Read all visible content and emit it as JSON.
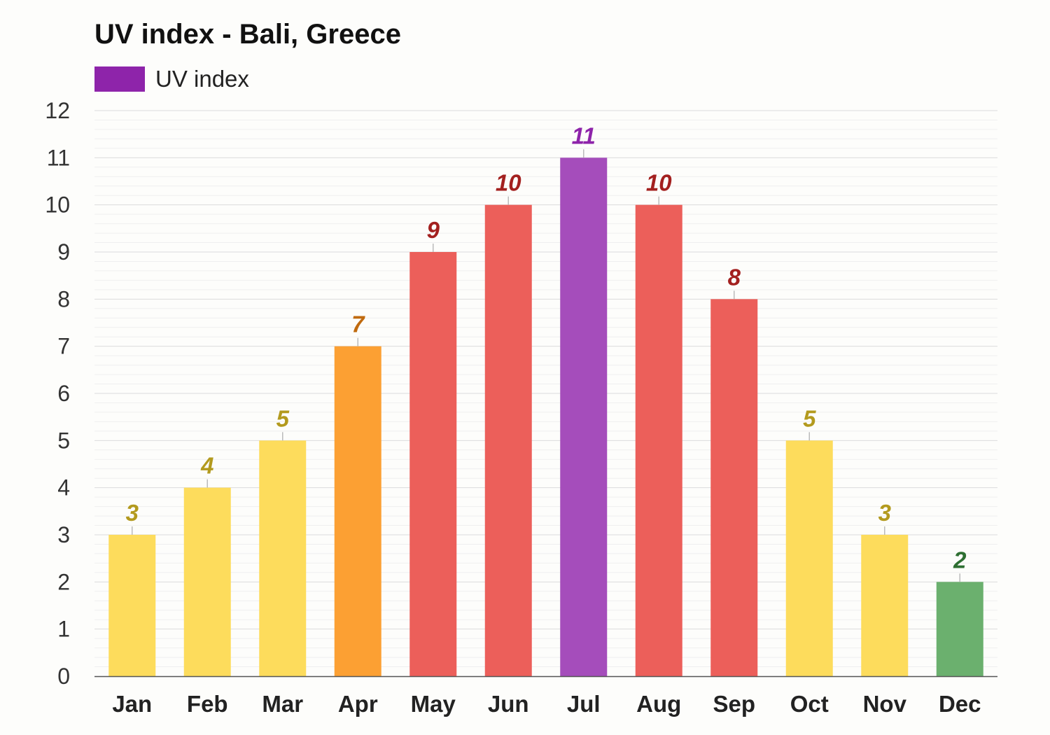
{
  "chart_data": {
    "type": "bar",
    "title": "UV index - Bali, Greece",
    "xlabel": "",
    "ylabel": "",
    "ylim": [
      0,
      12
    ],
    "yticks": [
      0,
      1,
      2,
      3,
      4,
      5,
      6,
      7,
      8,
      9,
      10,
      11,
      12
    ],
    "grid": true,
    "legend": {
      "position": "top-left",
      "entries": [
        {
          "label": "UV index",
          "color": "#8e24aa"
        }
      ]
    },
    "categories": [
      "Jan",
      "Feb",
      "Mar",
      "Apr",
      "May",
      "Jun",
      "Jul",
      "Aug",
      "Sep",
      "Oct",
      "Nov",
      "Dec"
    ],
    "series": [
      {
        "name": "UV index",
        "values": [
          3,
          4,
          5,
          7,
          9,
          10,
          11,
          10,
          8,
          5,
          3,
          2
        ],
        "bar_colors": [
          "#fddc5c",
          "#fddc5c",
          "#fddc5c",
          "#fca033",
          "#ec5f5a",
          "#ec5f5a",
          "#a54dbb",
          "#ec5f5a",
          "#ec5f5a",
          "#fddc5c",
          "#fddc5c",
          "#6bb06e"
        ],
        "label_colors": [
          "#b39a1e",
          "#b39a1e",
          "#b39a1e",
          "#c06a0e",
          "#a3201f",
          "#a3201f",
          "#8e24aa",
          "#a3201f",
          "#a3201f",
          "#b39a1e",
          "#b39a1e",
          "#2e6f32"
        ]
      }
    ]
  }
}
